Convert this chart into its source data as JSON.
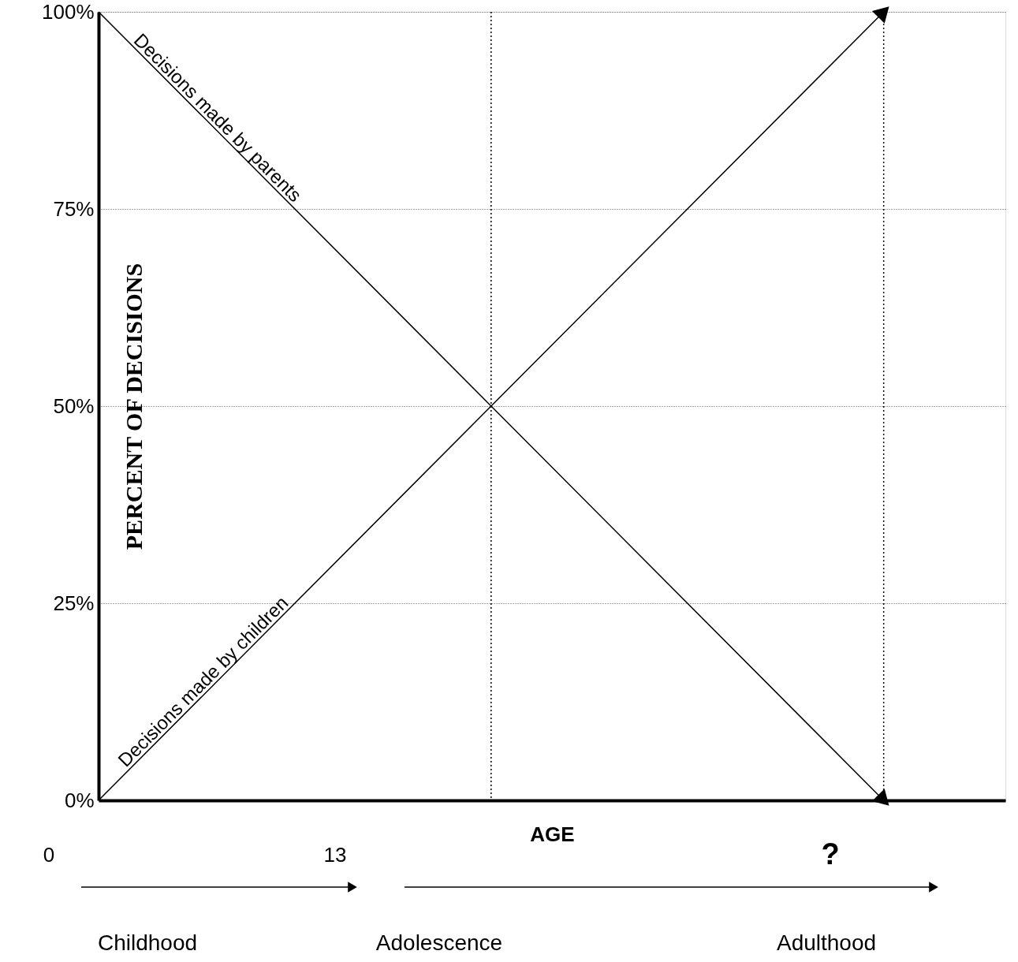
{
  "chart_data": {
    "type": "line",
    "xlabel": "AGE",
    "ylabel": "PERCENT OF DECISIONS",
    "categories": [
      null,
      null,
      null
    ],
    "ylim": [
      0,
      100
    ],
    "yticks": [
      {
        "value": 0,
        "label": "0%"
      },
      {
        "value": 25,
        "label": "25%"
      },
      {
        "value": 50,
        "label": "50%"
      },
      {
        "value": 75,
        "label": "75%"
      },
      {
        "value": 100,
        "label": "100%"
      }
    ],
    "tick_labels": "y",
    "grid": "y",
    "line_style": "solid",
    "series": [
      {
        "name": "Decisions made by parents",
        "color": "#000000",
        "values": [
          100,
          50,
          0
        ]
      },
      {
        "name": "Decisions made by children",
        "color": "#000000",
        "values": [
          0,
          50,
          100
        ]
      }
    ],
    "ref_lines": [
      {
        "axis": "x",
        "line_style": "dotted",
        "color": "#000000"
      },
      {
        "axis": "x",
        "line_style": "dotted",
        "color": "#000000"
      }
    ],
    "annotations": [
      "0",
      "13",
      "?",
      "Childhood",
      "Adolescence",
      "Adulthood"
    ]
  }
}
